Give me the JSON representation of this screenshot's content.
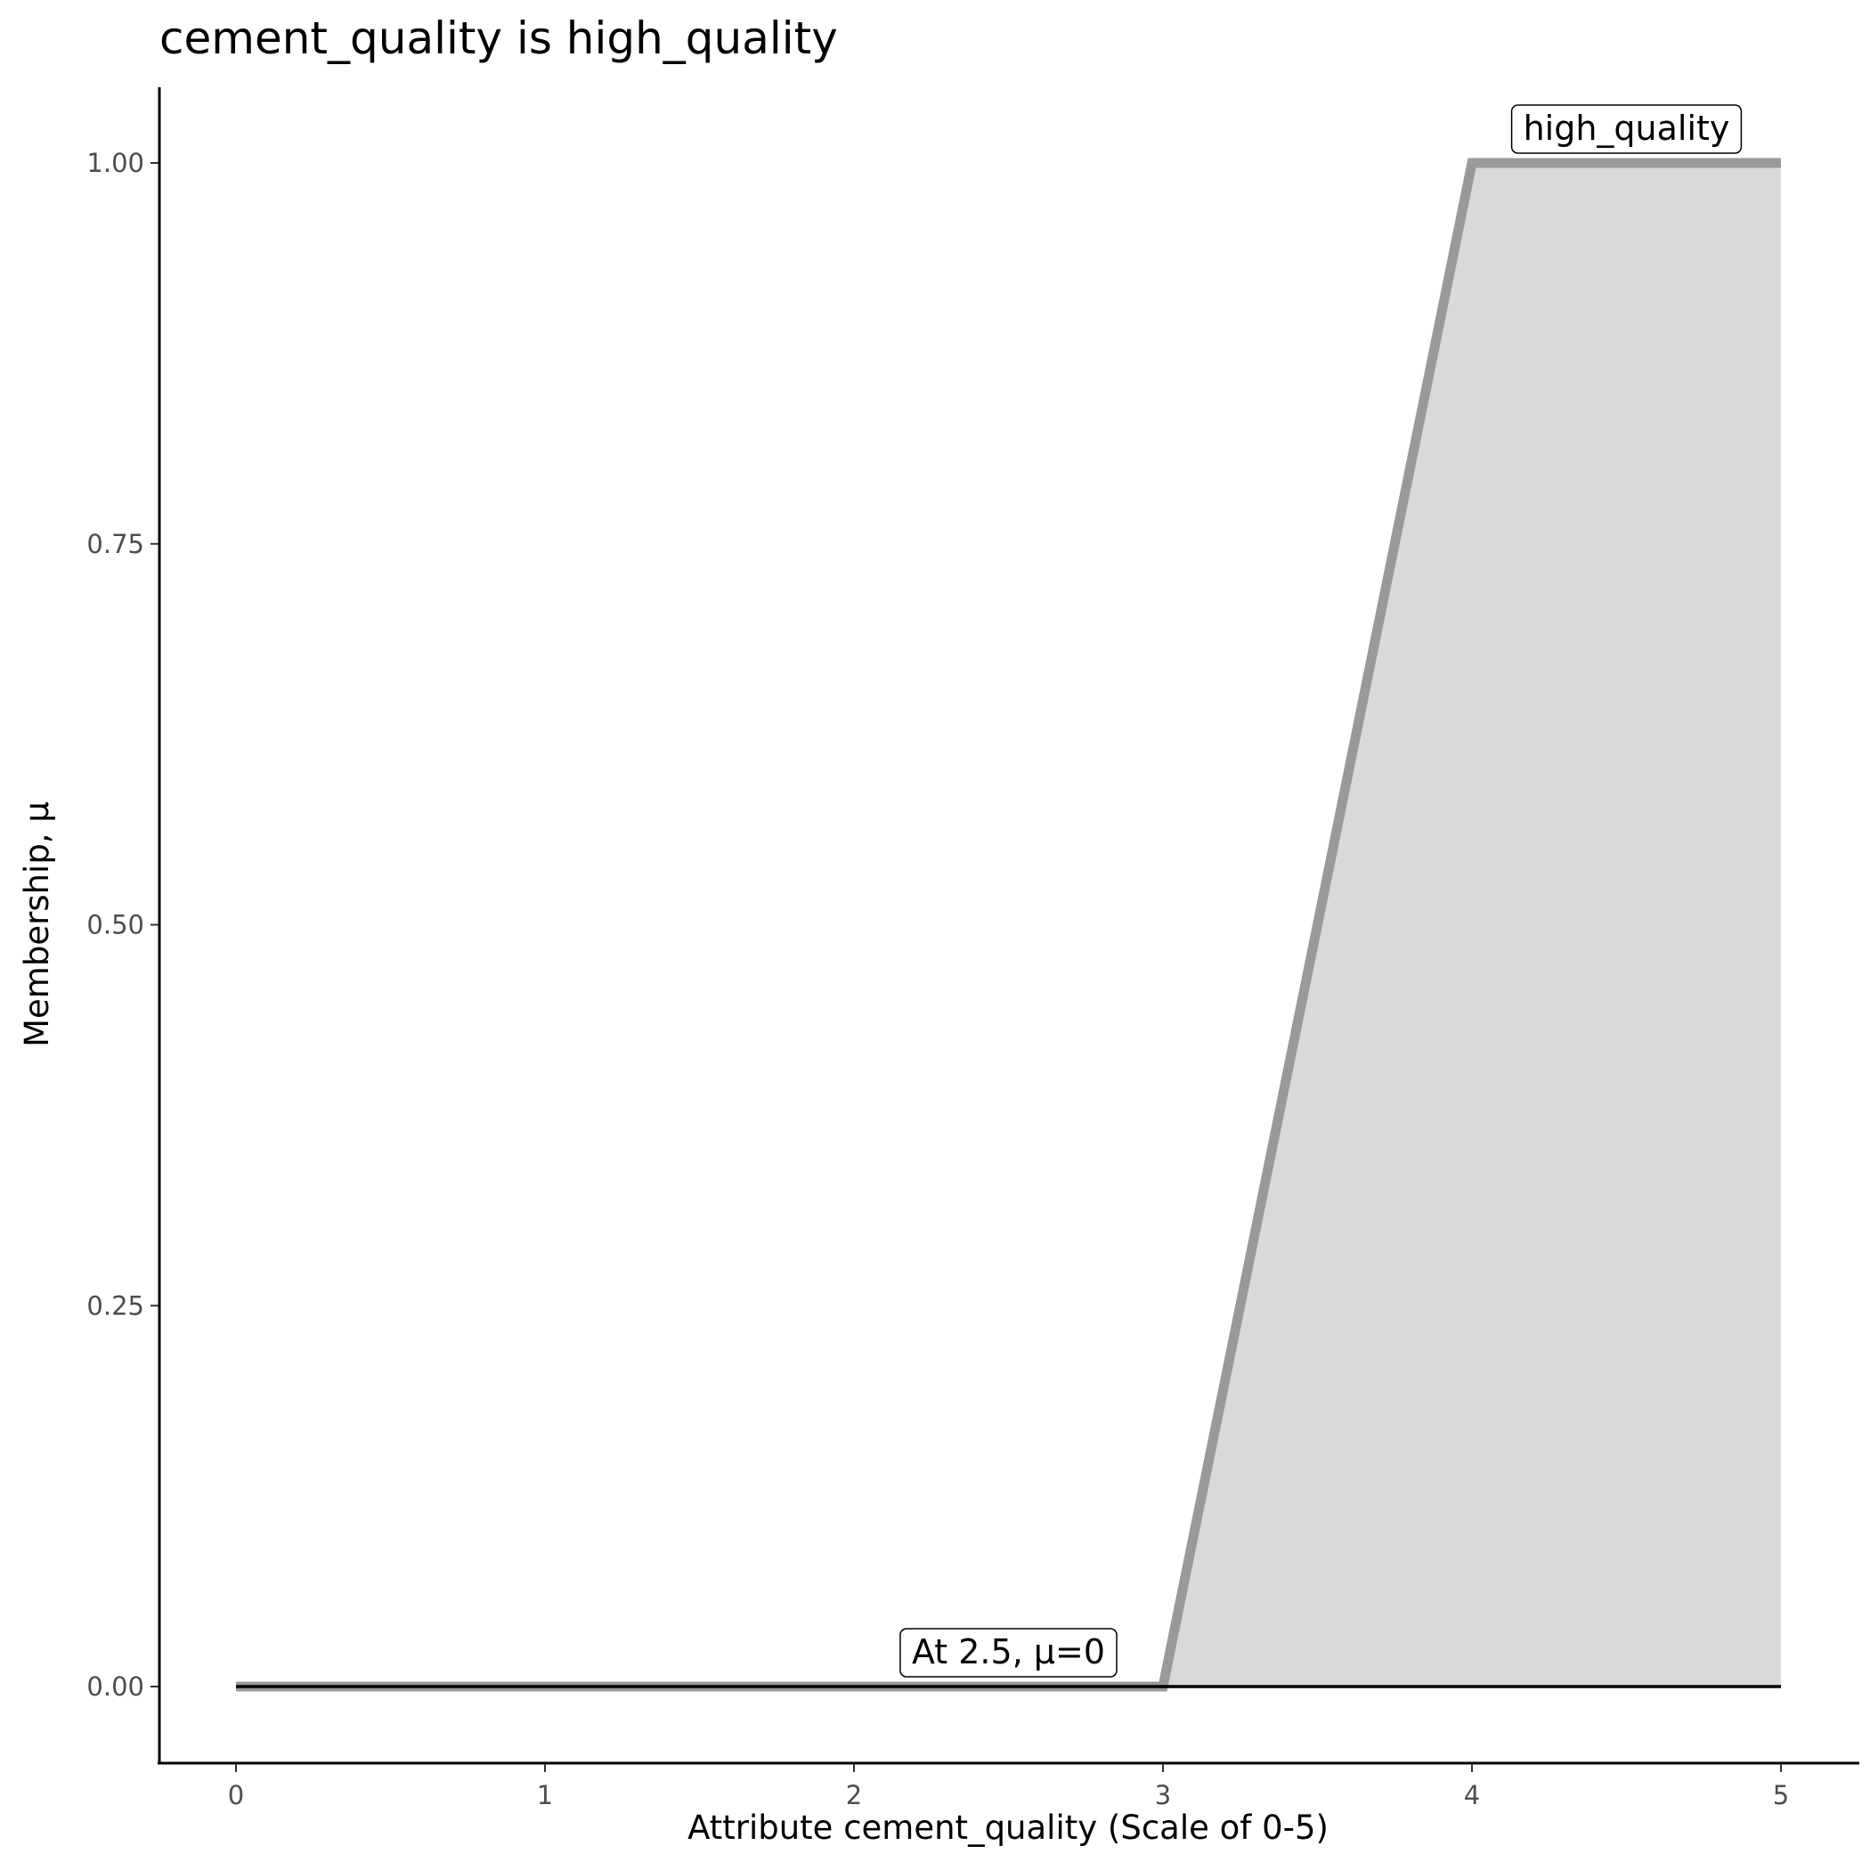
{
  "chart_data": {
    "type": "area",
    "title": "cement_quality is high_quality",
    "xlabel": "Attribute cement_quality (Scale of 0-5)",
    "ylabel": "Membership, μ",
    "xlim": [
      0,
      5
    ],
    "ylim": [
      0,
      1
    ],
    "x_ticks": [
      "0",
      "1",
      "2",
      "3",
      "4",
      "5"
    ],
    "y_ticks": [
      "0.00",
      "0.25",
      "0.50",
      "0.75",
      "1.00"
    ],
    "grid": false,
    "series": [
      {
        "name": "high_quality",
        "x": [
          0,
          3,
          4,
          5
        ],
        "y": [
          0,
          0,
          1,
          1
        ],
        "line_color": "#999999",
        "fill_color": "#d9d9d9"
      }
    ],
    "evaluation_line": {
      "x": [
        0,
        5
      ],
      "y": [
        0,
        0
      ],
      "color": "#000000"
    },
    "annotations": [
      {
        "text": "high_quality",
        "x": 4.5,
        "y": 1
      },
      {
        "text": "At 2.5, μ=0",
        "x": 2.5,
        "y": 0
      }
    ]
  }
}
